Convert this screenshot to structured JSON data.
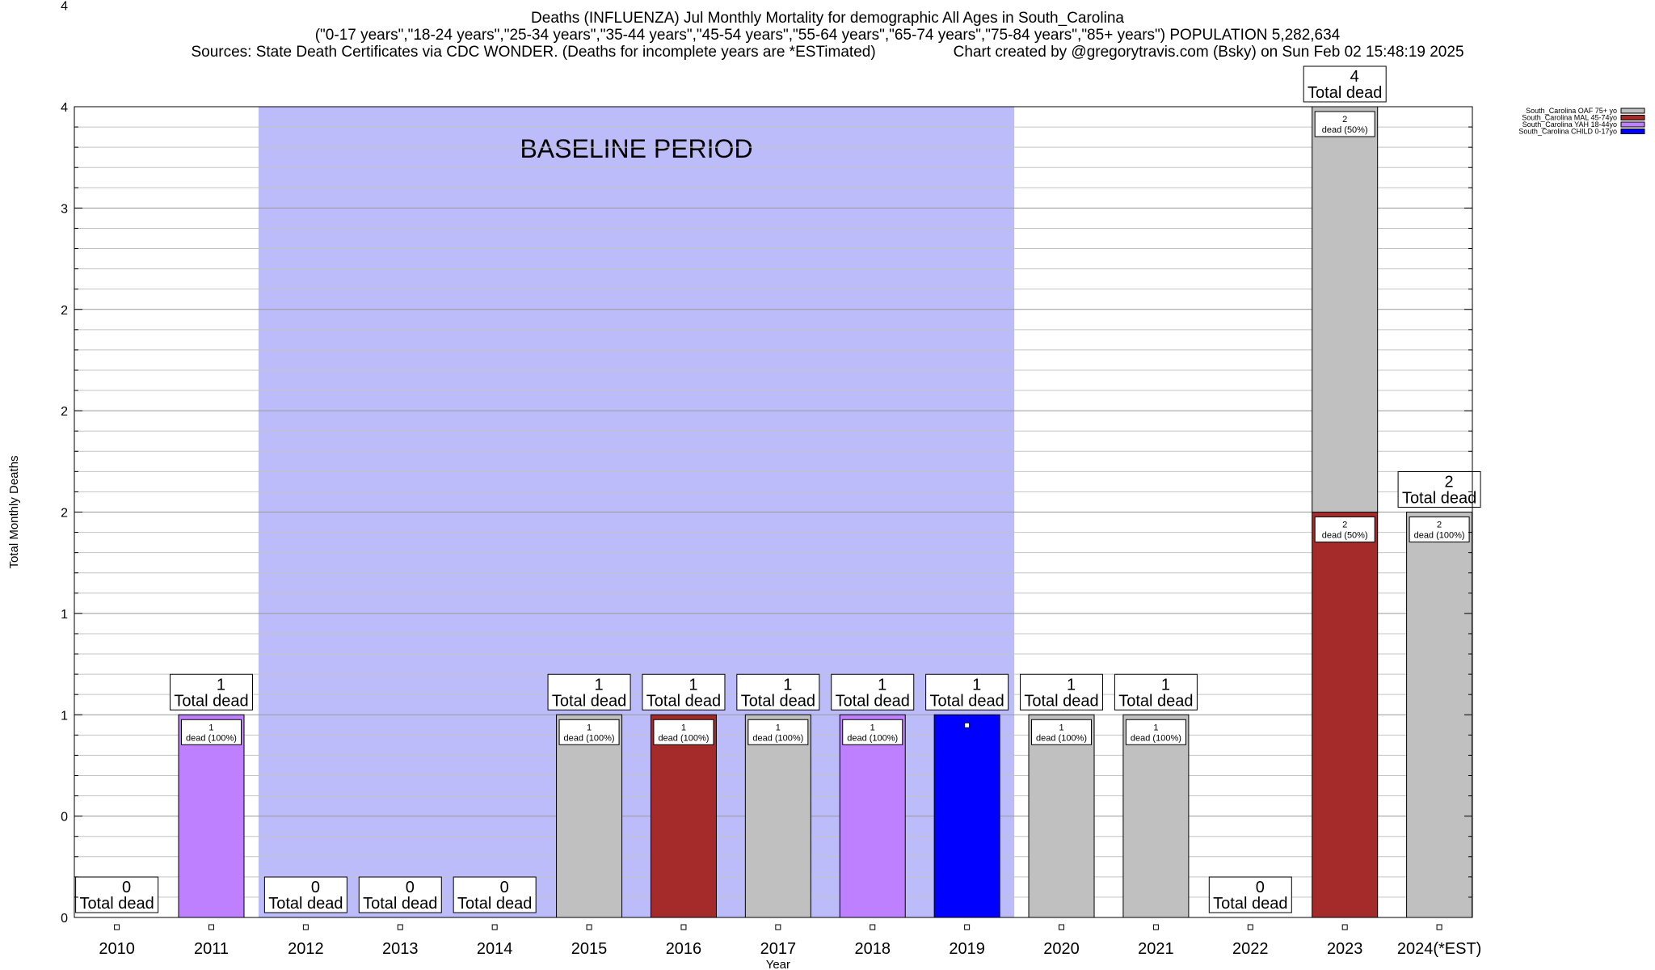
{
  "header": {
    "title": "Deaths (INFLUENZA) Jul Monthly Mortality for demographic All Ages in South_Carolina",
    "subtitle": "(\"0-17 years\",\"18-24 years\",\"25-34 years\",\"35-44 years\",\"45-54 years\",\"55-64 years\",\"65-74 years\",\"75-84 years\",\"85+ years\") POPULATION 5,282,634",
    "sources": "Sources: State Death Certificates via CDC WONDER. (Deaths for incomplete years are *ESTimated)",
    "credit": "Chart created by @gregorytravis.com (Bsky) on Sun Feb 02 15:48:19 2025"
  },
  "chart_data": {
    "type": "bar",
    "stacked": true,
    "xlabel": "Year",
    "ylabel": "Total Monthly Deaths",
    "ylim": [
      0,
      4
    ],
    "ytick_labels": [
      "0",
      "0",
      "1",
      "1",
      "2",
      "2",
      "2",
      "3",
      "4",
      "4"
    ],
    "categories": [
      "2010",
      "2011",
      "2012",
      "2013",
      "2014",
      "2015",
      "2016",
      "2017",
      "2018",
      "2019",
      "2020",
      "2021",
      "2022",
      "2023",
      "2024(*EST)"
    ],
    "baseline": {
      "label": "BASELINE PERIOD",
      "from": "2012",
      "to": "2019",
      "color": "#bcbcfa"
    },
    "series": [
      {
        "name": "South_Carolina CHILD 0-17yo",
        "color": "#0000ff",
        "values": [
          0,
          0,
          0,
          0,
          0,
          0,
          0,
          0,
          0,
          1,
          0,
          0,
          0,
          0,
          0
        ]
      },
      {
        "name": "South_Carolina YAH 18-44yo",
        "color": "#bf80ff",
        "values": [
          0,
          1,
          0,
          0,
          0,
          0,
          0,
          0,
          1,
          0,
          0,
          0,
          0,
          0,
          0
        ]
      },
      {
        "name": "South_Carolina MAL 45-74yo",
        "color": "#a52a2a",
        "values": [
          0,
          0,
          0,
          0,
          0,
          0,
          1,
          0,
          0,
          0,
          0,
          0,
          0,
          2,
          0
        ]
      },
      {
        "name": "South_Carolina OAF 75+ yo",
        "color": "#c0c0c0",
        "values": [
          0,
          0,
          0,
          0,
          0,
          1,
          0,
          1,
          0,
          0,
          1,
          1,
          0,
          2,
          2
        ]
      }
    ],
    "totals": [
      0,
      1,
      0,
      0,
      0,
      1,
      1,
      1,
      1,
      1,
      1,
      1,
      0,
      4,
      2
    ],
    "total_label_suffix": "Total dead",
    "segment_labels": [
      {
        "category": "2011",
        "series": "South_Carolina YAH 18-44yo",
        "value": "1",
        "text": "dead (100%)"
      },
      {
        "category": "2015",
        "series": "South_Carolina OAF 75+ yo",
        "value": "1",
        "text": "dead (100%)"
      },
      {
        "category": "2016",
        "series": "South_Carolina MAL 45-74yo",
        "value": "1",
        "text": "dead (100%)"
      },
      {
        "category": "2017",
        "series": "South_Carolina OAF 75+ yo",
        "value": "1",
        "text": "dead (100%)"
      },
      {
        "category": "2018",
        "series": "South_Carolina YAH 18-44yo",
        "value": "1",
        "text": "dead (100%)"
      },
      {
        "category": "2020",
        "series": "South_Carolina OAF 75+ yo",
        "value": "1",
        "text": "dead (100%)"
      },
      {
        "category": "2021",
        "series": "South_Carolina OAF 75+ yo",
        "value": "1",
        "text": "dead (100%)"
      },
      {
        "category": "2023",
        "series": "South_Carolina MAL 45-74yo",
        "value": "2",
        "text": "dead (50%)"
      },
      {
        "category": "2023",
        "series": "South_Carolina OAF 75+ yo",
        "value": "2",
        "text": "dead (50%)"
      },
      {
        "category": "2024(*EST)",
        "series": "South_Carolina OAF 75+ yo",
        "value": "2",
        "text": "dead (100%)"
      }
    ],
    "legend": {
      "position": "top-right",
      "entries": [
        {
          "label": "South_Carolina OAF 75+ yo",
          "color": "#c0c0c0"
        },
        {
          "label": "South_Carolina MAL 45-74yo",
          "color": "#a52a2a"
        },
        {
          "label": "South_Carolina YAH 18-44yo",
          "color": "#bf80ff"
        },
        {
          "label": "South_Carolina CHILD 0-17yo",
          "color": "#0000ff"
        }
      ]
    },
    "grid": true
  }
}
